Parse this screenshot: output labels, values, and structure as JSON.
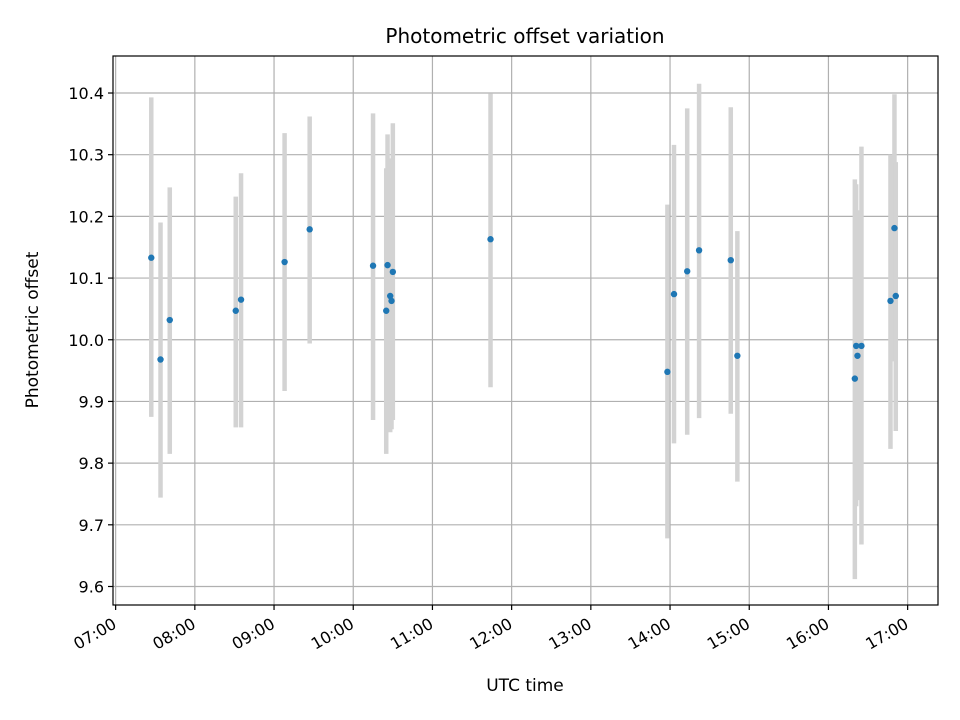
{
  "chart_data": {
    "type": "scatter",
    "title": "Photometric offset variation",
    "xlabel": "UTC time",
    "ylabel": "Photometric offset",
    "grid": true,
    "colors": {
      "point": "#1f77b4",
      "errorbar": "#d3d3d3",
      "grid": "#b0b0b0"
    },
    "xlim": [
      "06:58",
      "17:23"
    ],
    "ylim": [
      9.57,
      10.46
    ],
    "x_ticks": [
      "07:00",
      "08:00",
      "09:00",
      "10:00",
      "11:00",
      "12:00",
      "13:00",
      "14:00",
      "15:00",
      "16:00",
      "17:00"
    ],
    "y_ticks": [
      "9.6",
      "9.7",
      "9.8",
      "9.9",
      "10.0",
      "10.1",
      "10.2",
      "10.3",
      "10.4"
    ],
    "points": [
      {
        "x": "07:27",
        "y": 10.133,
        "err_low": 9.875,
        "err_high": 10.393
      },
      {
        "x": "07:34",
        "y": 9.968,
        "err_low": 9.744,
        "err_high": 10.19
      },
      {
        "x": "07:41",
        "y": 10.032,
        "err_low": 9.815,
        "err_high": 10.247
      },
      {
        "x": "08:31",
        "y": 10.047,
        "err_low": 9.858,
        "err_high": 10.232
      },
      {
        "x": "08:35",
        "y": 10.065,
        "err_low": 9.858,
        "err_high": 10.27
      },
      {
        "x": "09:08",
        "y": 10.126,
        "err_low": 9.917,
        "err_high": 10.335
      },
      {
        "x": "09:27",
        "y": 10.179,
        "err_low": 9.994,
        "err_high": 10.362
      },
      {
        "x": "10:15",
        "y": 10.12,
        "err_low": 9.87,
        "err_high": 10.367
      },
      {
        "x": "10:25",
        "y": 10.047,
        "err_low": 9.815,
        "err_high": 10.278
      },
      {
        "x": "10:26",
        "y": 10.121,
        "err_low": 9.91,
        "err_high": 10.333
      },
      {
        "x": "10:28",
        "y": 10.071,
        "err_low": 9.85,
        "err_high": 10.294
      },
      {
        "x": "10:29",
        "y": 10.063,
        "err_low": 9.855,
        "err_high": 10.27
      },
      {
        "x": "10:30",
        "y": 10.11,
        "err_low": 9.87,
        "err_high": 10.351
      },
      {
        "x": "11:44",
        "y": 10.163,
        "err_low": 9.923,
        "err_high": 10.399
      },
      {
        "x": "13:58",
        "y": 9.948,
        "err_low": 9.678,
        "err_high": 10.219
      },
      {
        "x": "14:03",
        "y": 10.074,
        "err_low": 9.832,
        "err_high": 10.316
      },
      {
        "x": "14:13",
        "y": 10.111,
        "err_low": 9.846,
        "err_high": 10.375
      },
      {
        "x": "14:22",
        "y": 10.145,
        "err_low": 9.873,
        "err_high": 10.415
      },
      {
        "x": "14:46",
        "y": 10.129,
        "err_low": 9.88,
        "err_high": 10.377
      },
      {
        "x": "14:51",
        "y": 9.974,
        "err_low": 9.77,
        "err_high": 10.176
      },
      {
        "x": "16:20",
        "y": 9.937,
        "err_low": 9.612,
        "err_high": 10.26
      },
      {
        "x": "16:21",
        "y": 9.99,
        "err_low": 9.73,
        "err_high": 10.252
      },
      {
        "x": "16:22",
        "y": 9.974,
        "err_low": 9.74,
        "err_high": 10.21
      },
      {
        "x": "16:25",
        "y": 9.99,
        "err_low": 9.668,
        "err_high": 10.313
      },
      {
        "x": "16:47",
        "y": 10.063,
        "err_low": 9.823,
        "err_high": 10.3
      },
      {
        "x": "16:50",
        "y": 10.181,
        "err_low": 9.965,
        "err_high": 10.398
      },
      {
        "x": "16:51",
        "y": 10.071,
        "err_low": 9.852,
        "err_high": 10.288
      }
    ]
  }
}
